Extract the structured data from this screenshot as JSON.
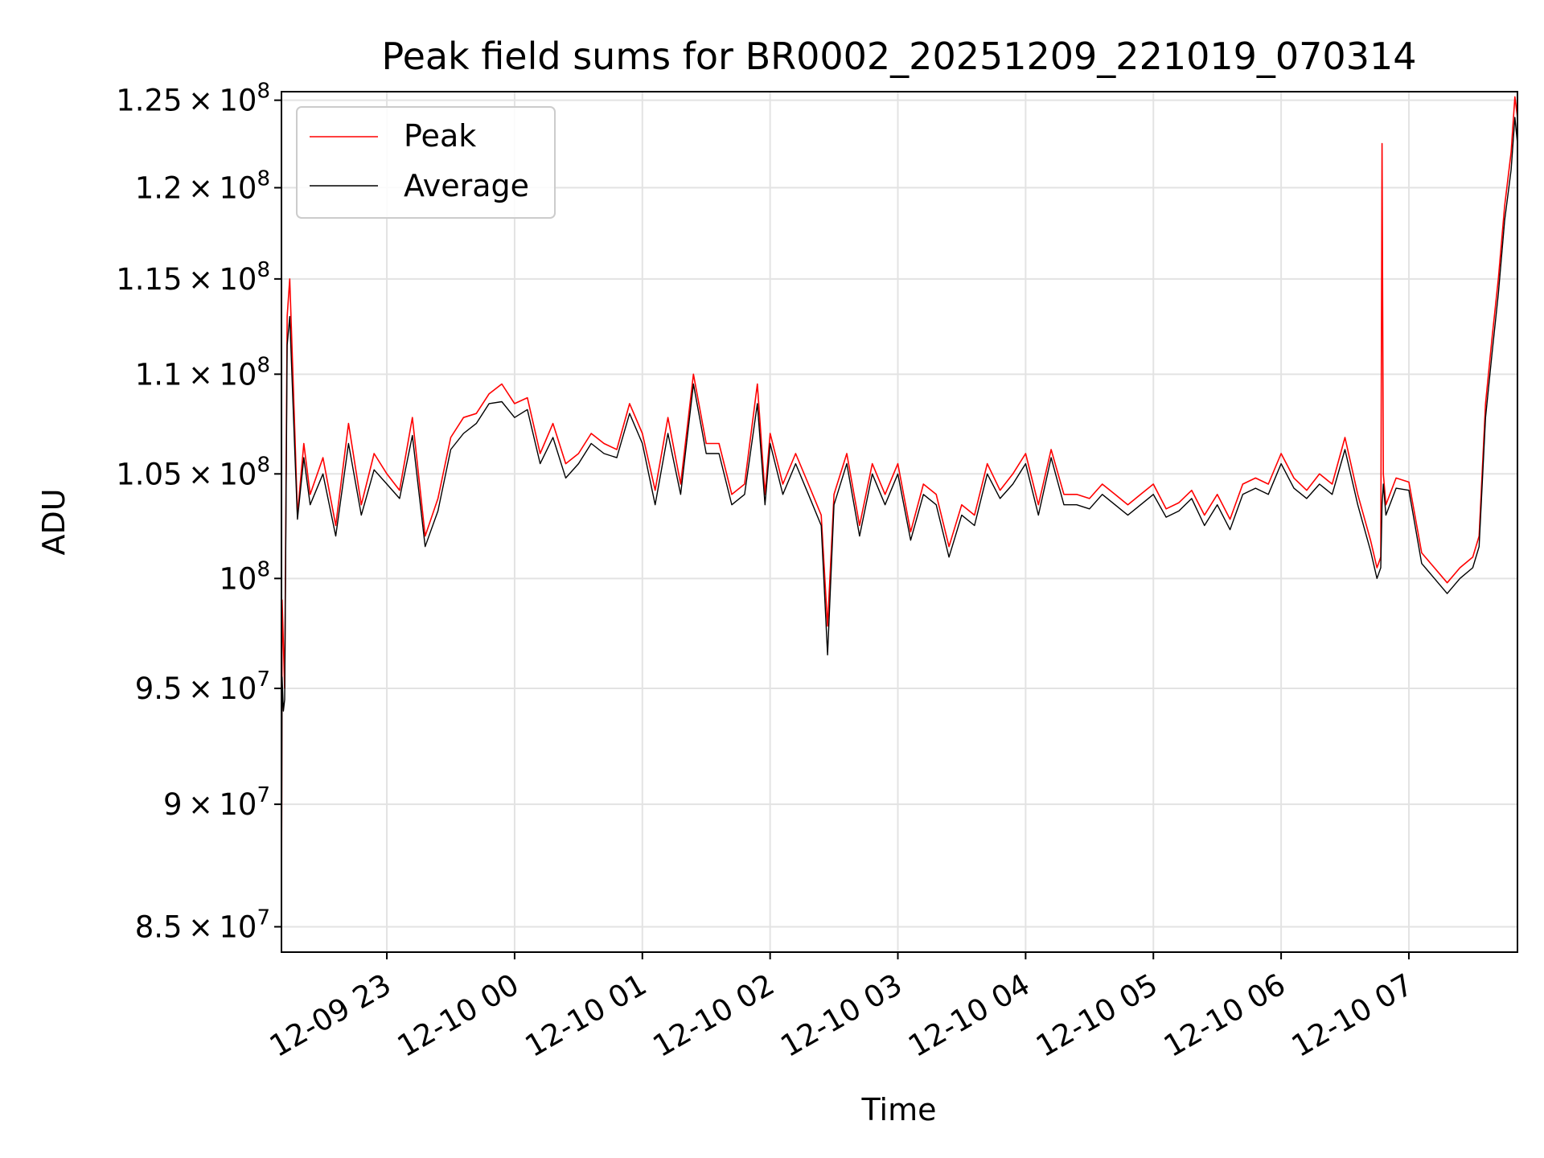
{
  "chart_data": {
    "type": "line",
    "title": "Peak field sums for BR0002_20251209_221019_070314",
    "xlabel": "Time",
    "ylabel": "ADU",
    "yscale": "log",
    "ylim": [
      84000000,
      125500000
    ],
    "xlim_hours": [
      22.175,
      31.85
    ],
    "grid": true,
    "legend_position": "upper-left",
    "x_ticks": [
      {
        "hour": 23,
        "label": "12-09 23"
      },
      {
        "hour": 24,
        "label": "12-10 00"
      },
      {
        "hour": 25,
        "label": "12-10 01"
      },
      {
        "hour": 26,
        "label": "12-10 02"
      },
      {
        "hour": 27,
        "label": "12-10 03"
      },
      {
        "hour": 28,
        "label": "12-10 04"
      },
      {
        "hour": 29,
        "label": "12-10 05"
      },
      {
        "hour": 30,
        "label": "12-10 06"
      },
      {
        "hour": 31,
        "label": "12-10 07"
      }
    ],
    "y_ticks": [
      {
        "value": 85000000,
        "mantissa": "8.5",
        "times": "×",
        "base": "10",
        "exp": "7"
      },
      {
        "value": 90000000,
        "mantissa": "9",
        "times": "×",
        "base": "10",
        "exp": "7"
      },
      {
        "value": 95000000,
        "mantissa": "9.5",
        "times": "×",
        "base": "10",
        "exp": "7"
      },
      {
        "value": 100000000,
        "mantissa": "",
        "times": "",
        "base": "10",
        "exp": "8"
      },
      {
        "value": 105000000,
        "mantissa": "1.05",
        "times": "×",
        "base": "10",
        "exp": "8"
      },
      {
        "value": 110000000,
        "mantissa": "1.1",
        "times": "×",
        "base": "10",
        "exp": "8"
      },
      {
        "value": 115000000,
        "mantissa": "1.15",
        "times": "×",
        "base": "10",
        "exp": "8"
      },
      {
        "value": 120000000,
        "mantissa": "1.2",
        "times": "×",
        "base": "10",
        "exp": "8"
      },
      {
        "value": 125000000,
        "mantissa": "1.25",
        "times": "×",
        "base": "10",
        "exp": "8"
      }
    ],
    "series": [
      {
        "name": "Peak",
        "color": "#ff0000",
        "hours": [
          22.175,
          22.18,
          22.19,
          22.2,
          22.22,
          22.24,
          22.28,
          22.3,
          22.35,
          22.4,
          22.5,
          22.6,
          22.7,
          22.8,
          22.9,
          23.0,
          23.1,
          23.2,
          23.3,
          23.4,
          23.5,
          23.6,
          23.7,
          23.8,
          23.9,
          24.0,
          24.1,
          24.2,
          24.3,
          24.4,
          24.5,
          24.6,
          24.7,
          24.8,
          24.9,
          25.0,
          25.1,
          25.2,
          25.3,
          25.4,
          25.5,
          25.6,
          25.7,
          25.8,
          25.9,
          25.96,
          26.0,
          26.1,
          26.2,
          26.3,
          26.4,
          26.45,
          26.5,
          26.6,
          26.7,
          26.8,
          26.9,
          27.0,
          27.1,
          27.2,
          27.3,
          27.4,
          27.5,
          27.6,
          27.7,
          27.8,
          27.9,
          28.0,
          28.1,
          28.2,
          28.3,
          28.4,
          28.5,
          28.6,
          28.7,
          28.8,
          28.9,
          29.0,
          29.1,
          29.2,
          29.3,
          29.4,
          29.5,
          29.6,
          29.7,
          29.8,
          29.9,
          30.0,
          30.1,
          30.2,
          30.3,
          30.4,
          30.5,
          30.6,
          30.7,
          30.75,
          30.78,
          30.79,
          30.8,
          30.82,
          30.9,
          31.0,
          31.1,
          31.2,
          31.3,
          31.4,
          31.5,
          31.55,
          31.6,
          31.65,
          31.7,
          31.75,
          31.8,
          31.83,
          31.85
        ],
        "values": [
          84000000,
          99000000,
          97000000,
          95000000,
          113000000,
          115000000,
          107000000,
          103000000,
          106500000,
          104000000,
          105800000,
          102500000,
          107500000,
          103500000,
          106000000,
          105000000,
          104200000,
          107800000,
          102000000,
          103800000,
          106800000,
          107800000,
          108000000,
          109000000,
          109500000,
          108500000,
          108800000,
          106000000,
          107500000,
          105500000,
          106000000,
          107000000,
          106500000,
          106200000,
          108500000,
          107000000,
          104200000,
          107800000,
          104500000,
          110000000,
          106500000,
          106500000,
          104000000,
          104500000,
          109500000,
          104000000,
          107000000,
          104500000,
          106000000,
          104500000,
          103000000,
          97800000,
          104000000,
          106000000,
          102500000,
          105500000,
          104000000,
          105500000,
          102200000,
          104500000,
          104000000,
          101500000,
          103500000,
          103000000,
          105500000,
          104200000,
          105000000,
          106000000,
          103500000,
          106200000,
          104000000,
          104000000,
          103800000,
          104500000,
          104000000,
          103500000,
          104000000,
          104500000,
          103300000,
          103600000,
          104200000,
          103000000,
          104000000,
          102800000,
          104500000,
          104800000,
          104500000,
          106000000,
          104800000,
          104200000,
          105000000,
          104500000,
          106800000,
          104000000,
          101800000,
          100500000,
          101000000,
          122500000,
          105000000,
          103500000,
          104800000,
          104600000,
          101200000,
          100500000,
          99800000,
          100500000,
          101000000,
          102000000,
          108500000,
          111800000,
          115000000,
          119000000,
          122000000,
          125200000,
          124000000
        ]
      },
      {
        "name": "Average",
        "color": "#000000",
        "hours": [
          22.175,
          22.18,
          22.19,
          22.2,
          22.22,
          22.24,
          22.28,
          22.3,
          22.35,
          22.4,
          22.5,
          22.6,
          22.7,
          22.8,
          22.9,
          23.0,
          23.1,
          23.2,
          23.3,
          23.4,
          23.5,
          23.6,
          23.7,
          23.8,
          23.9,
          24.0,
          24.1,
          24.2,
          24.3,
          24.4,
          24.5,
          24.6,
          24.7,
          24.8,
          24.9,
          25.0,
          25.1,
          25.2,
          25.3,
          25.4,
          25.5,
          25.6,
          25.7,
          25.8,
          25.9,
          25.96,
          26.0,
          26.1,
          26.2,
          26.3,
          26.4,
          26.45,
          26.5,
          26.6,
          26.7,
          26.8,
          26.9,
          27.0,
          27.1,
          27.2,
          27.3,
          27.4,
          27.5,
          27.6,
          27.7,
          27.8,
          27.9,
          28.0,
          28.1,
          28.2,
          28.3,
          28.4,
          28.5,
          28.6,
          28.7,
          28.8,
          28.9,
          29.0,
          29.1,
          29.2,
          29.3,
          29.4,
          29.5,
          29.6,
          29.7,
          29.8,
          29.9,
          30.0,
          30.1,
          30.2,
          30.3,
          30.4,
          30.5,
          30.6,
          30.7,
          30.75,
          30.78,
          30.79,
          30.8,
          30.82,
          30.9,
          31.0,
          31.1,
          31.2,
          31.3,
          31.4,
          31.5,
          31.55,
          31.6,
          31.65,
          31.7,
          31.75,
          31.8,
          31.83,
          31.85
        ],
        "values": [
          85000000,
          95500000,
          94000000,
          94500000,
          111500000,
          113000000,
          106000000,
          102800000,
          105800000,
          103500000,
          105000000,
          102000000,
          106500000,
          103000000,
          105200000,
          104500000,
          103800000,
          106900000,
          101500000,
          103200000,
          106200000,
          107000000,
          107500000,
          108500000,
          108600000,
          107800000,
          108200000,
          105500000,
          106800000,
          104800000,
          105500000,
          106500000,
          106000000,
          105800000,
          108000000,
          106500000,
          103500000,
          107000000,
          104000000,
          109500000,
          106000000,
          106000000,
          103500000,
          104000000,
          108500000,
          103500000,
          106500000,
          104000000,
          105500000,
          104000000,
          102500000,
          96500000,
          103500000,
          105500000,
          102000000,
          105000000,
          103500000,
          105000000,
          101800000,
          104000000,
          103500000,
          101000000,
          103000000,
          102500000,
          105000000,
          103800000,
          104500000,
          105500000,
          103000000,
          105800000,
          103500000,
          103500000,
          103300000,
          104000000,
          103500000,
          103000000,
          103500000,
          104000000,
          102900000,
          103200000,
          103800000,
          102500000,
          103500000,
          102300000,
          104000000,
          104300000,
          104000000,
          105500000,
          104300000,
          103800000,
          104500000,
          104000000,
          106200000,
          103500000,
          101300000,
          100000000,
          100500000,
          103500000,
          104500000,
          103000000,
          104300000,
          104200000,
          100700000,
          100000000,
          99300000,
          100000000,
          100500000,
          101500000,
          107800000,
          111000000,
          114200000,
          118200000,
          121000000,
          124000000,
          122500000
        ]
      }
    ]
  }
}
